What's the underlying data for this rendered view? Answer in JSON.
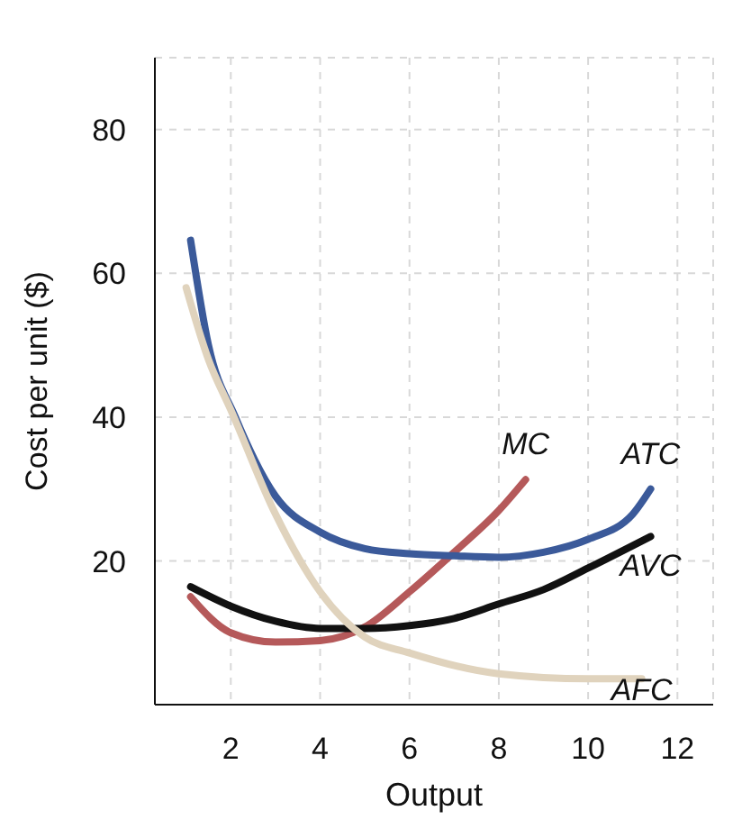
{
  "chart_data": {
    "type": "line",
    "xlabel": "Output",
    "ylabel": "Cost per unit ($)",
    "xlim": [
      0.3,
      12.8
    ],
    "ylim": [
      0,
      90
    ],
    "xticks": [
      2,
      4,
      6,
      8,
      10,
      12
    ],
    "yticks": [
      20,
      40,
      60,
      80
    ],
    "grid": true,
    "legend": false,
    "marker": "none",
    "line_style": "solid",
    "series": [
      {
        "name": "MC",
        "color": "#b5595a",
        "x": [
          1.1,
          2,
          3,
          4,
          5,
          6,
          7,
          8,
          8.6
        ],
        "values": [
          15,
          10,
          8.7,
          8.9,
          10.8,
          15.7,
          21.2,
          27,
          31.3
        ]
      },
      {
        "name": "ATC",
        "color": "#3b5a9a",
        "x": [
          1.1,
          1.5,
          2.1,
          3,
          4,
          5,
          6,
          7,
          8,
          9,
          10,
          11,
          11.4
        ],
        "values": [
          64.6,
          50,
          40,
          29,
          24,
          21.7,
          21,
          20.7,
          20.5,
          21.2,
          23,
          26.5,
          30
        ]
      },
      {
        "name": "AVC",
        "color": "#111111",
        "x": [
          1.1,
          2,
          3,
          4,
          5,
          6,
          7,
          8,
          9,
          10,
          11.4
        ],
        "values": [
          16.4,
          13.7,
          11.6,
          10.6,
          10.6,
          11,
          12,
          14,
          16,
          19,
          23.4
        ]
      },
      {
        "name": "AFC",
        "color": "#e0d3bd",
        "x": [
          1,
          1.5,
          2,
          3,
          4,
          5,
          6,
          8,
          10,
          11.2
        ],
        "values": [
          58,
          48,
          41,
          26.5,
          15.7,
          9.4,
          7.2,
          4.3,
          3.6,
          3.6
        ]
      }
    ]
  }
}
